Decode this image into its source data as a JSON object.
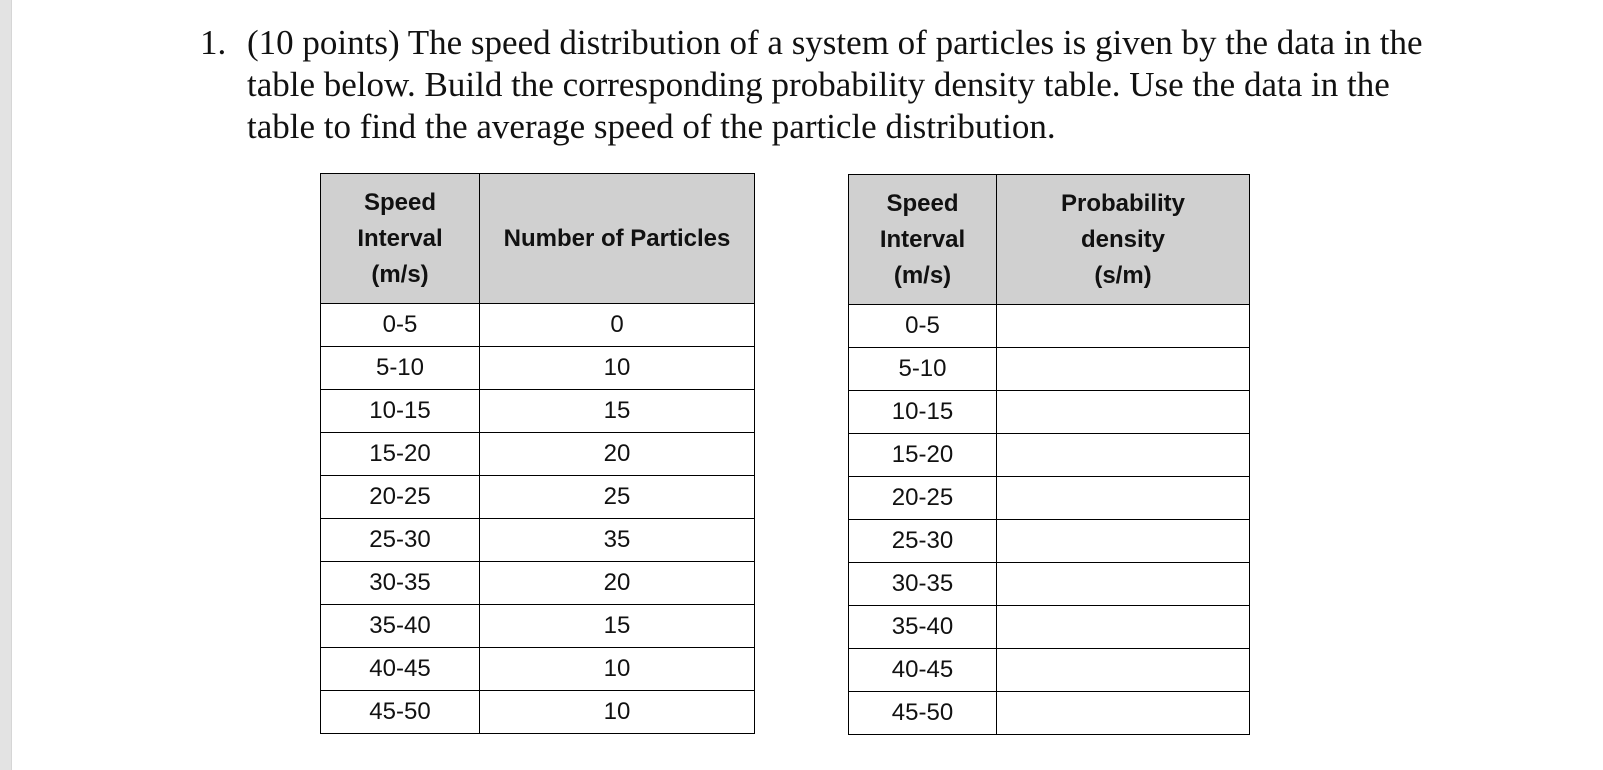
{
  "problem": {
    "number": "1.",
    "lines": [
      "(10 points) The speed distribution of a system of particles is given by the data in the",
      "table below.  Build the corresponding probability density table.  Use the data in the",
      "table to find the average speed of the particle distribution."
    ]
  },
  "table_counts": {
    "headers": {
      "interval": [
        "Speed",
        "Interval",
        "(m/s)"
      ],
      "particles": "Number of Particles"
    },
    "rows": [
      {
        "interval": "0-5",
        "particles": "0"
      },
      {
        "interval": "5-10",
        "particles": "10"
      },
      {
        "interval": "10-15",
        "particles": "15"
      },
      {
        "interval": "15-20",
        "particles": "20"
      },
      {
        "interval": "20-25",
        "particles": "25"
      },
      {
        "interval": "25-30",
        "particles": "35"
      },
      {
        "interval": "30-35",
        "particles": "20"
      },
      {
        "interval": "35-40",
        "particles": "15"
      },
      {
        "interval": "40-45",
        "particles": "10"
      },
      {
        "interval": "45-50",
        "particles": "10"
      }
    ]
  },
  "table_probability": {
    "headers": {
      "interval": [
        "Speed",
        "Interval",
        "(m/s)"
      ],
      "density": [
        "Probability",
        "density",
        "(s/m)"
      ]
    },
    "rows": [
      {
        "interval": "0-5",
        "density": ""
      },
      {
        "interval": "5-10",
        "density": ""
      },
      {
        "interval": "10-15",
        "density": ""
      },
      {
        "interval": "15-20",
        "density": ""
      },
      {
        "interval": "20-25",
        "density": ""
      },
      {
        "interval": "25-30",
        "density": ""
      },
      {
        "interval": "30-35",
        "density": ""
      },
      {
        "interval": "35-40",
        "density": ""
      },
      {
        "interval": "40-45",
        "density": ""
      },
      {
        "interval": "45-50",
        "density": ""
      }
    ]
  }
}
